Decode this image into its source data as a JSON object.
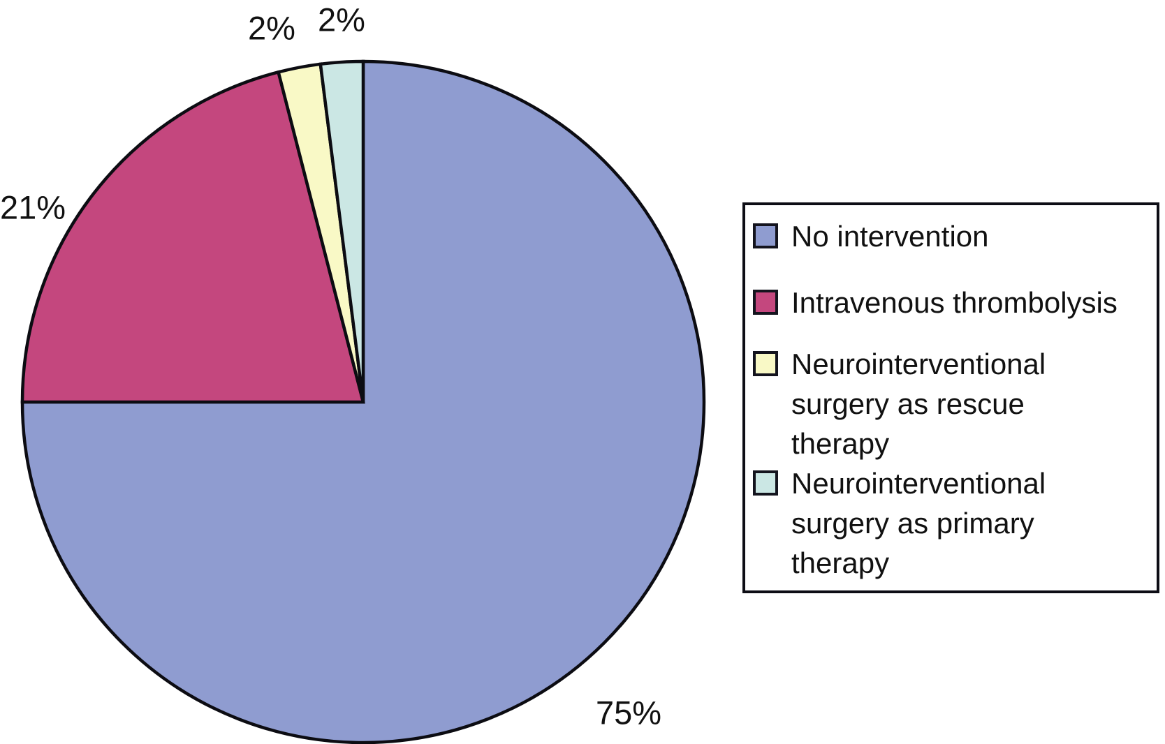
{
  "chart_data": {
    "type": "pie",
    "title": "",
    "start_angle_deg": 0,
    "direction": "clockwise",
    "legend_position": "right",
    "stroke_color": "#0c0c12",
    "slices": [
      {
        "label": "No intervention",
        "value": 75,
        "display": "75%",
        "color": "#8f9cd0"
      },
      {
        "label": "Intravenous thrombolysis",
        "value": 21,
        "display": "21%",
        "color": "#c4477e"
      },
      {
        "label": "Neurointerventional surgery as rescue therapy",
        "value": 2,
        "display": "2%",
        "color": "#f9f9c6"
      },
      {
        "label": "Neurointerventional surgery as primary therapy",
        "value": 2,
        "display": "2%",
        "color": "#cbe7e4"
      }
    ]
  },
  "labels": {
    "no_intervention_pct": "75%",
    "intravenous_thrombolysis_pct": "21%",
    "rescue_therapy_pct": "2%",
    "primary_therapy_pct": "2%"
  },
  "legend": {
    "items": [
      {
        "label": "No intervention"
      },
      {
        "label": "Intravenous thrombolysis"
      },
      {
        "label": "Neurointerventional\nsurgery as rescue\ntherapy"
      },
      {
        "label": "Neurointerventional\nsurgery as primary\ntherapy"
      }
    ]
  }
}
